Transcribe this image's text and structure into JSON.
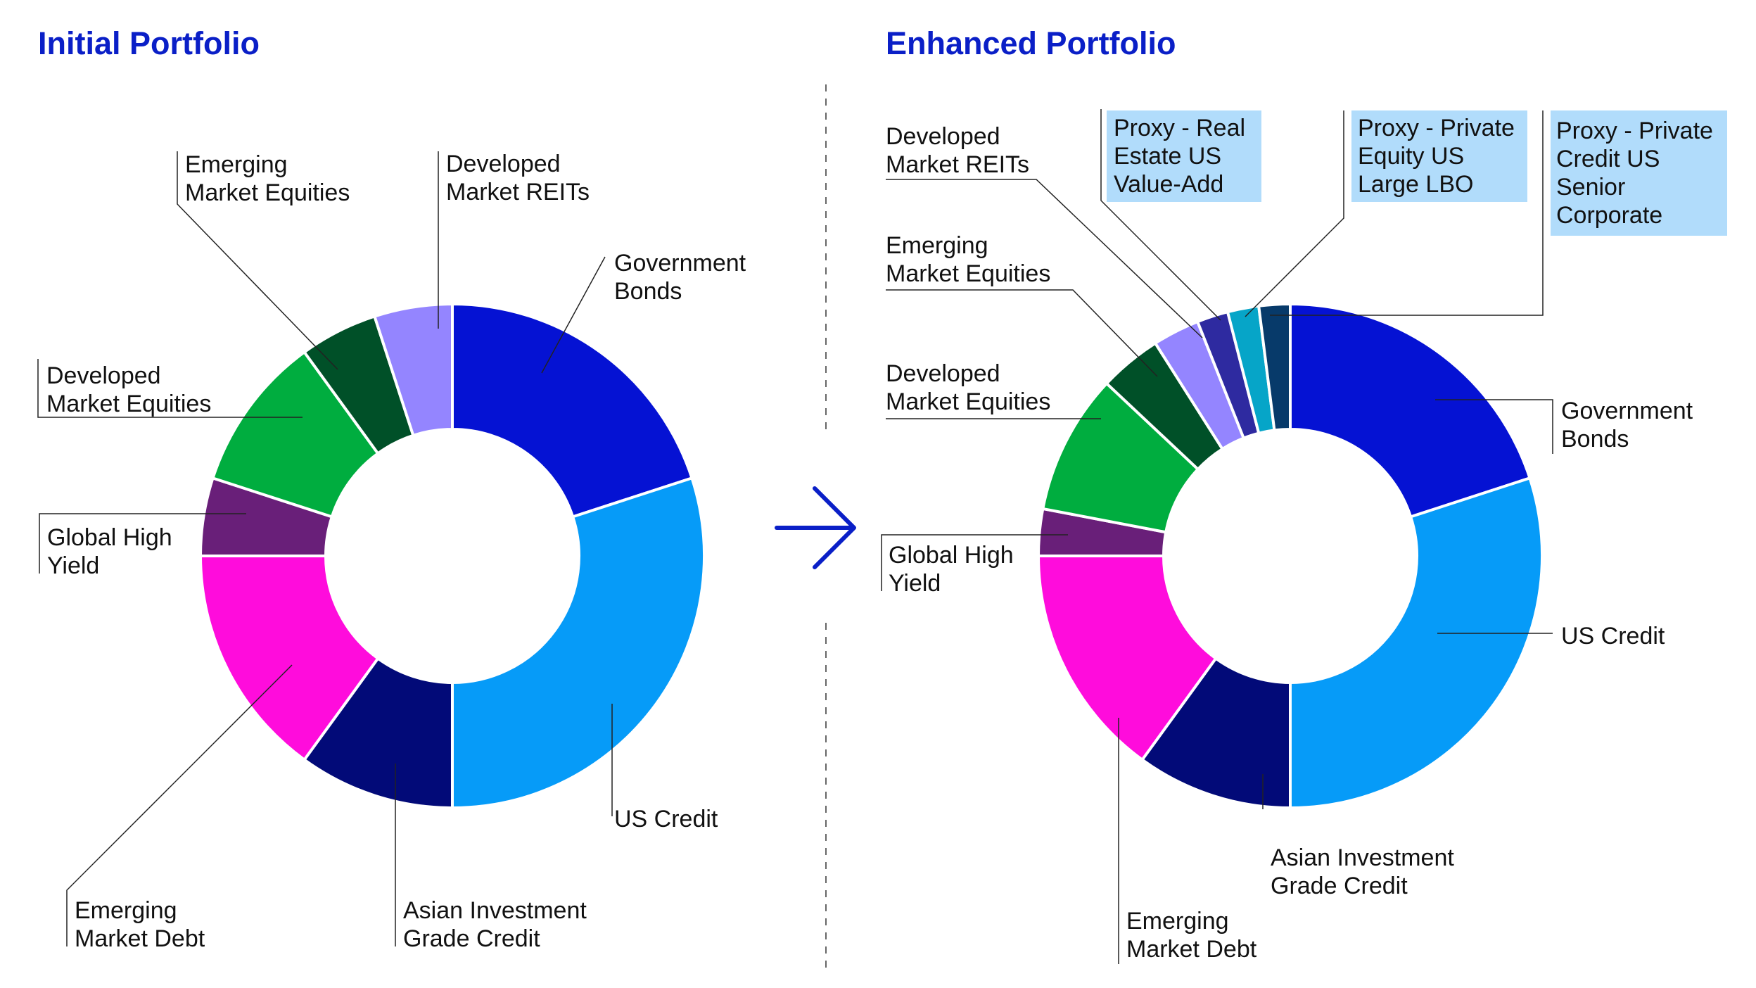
{
  "chart_data": [
    {
      "type": "pie",
      "title": "Initial Portfolio",
      "donut": true,
      "categories": [
        "Government Bonds",
        "US Credit",
        "Asian Investment Grade Credit",
        "Emerging Market Debt",
        "Global High Yield",
        "Developed Market Equities",
        "Emerging Market Equities",
        "Developed Market REITs"
      ],
      "values": [
        20,
        30,
        10,
        15,
        5,
        10,
        5,
        5
      ],
      "colors": [
        "#0512d3",
        "#069bf8",
        "#020a78",
        "#ff0cdc",
        "#691f79",
        "#00ad3f",
        "#005028",
        "#9485ff"
      ],
      "labels": [
        [
          "Government",
          "Bonds"
        ],
        [
          "US Credit"
        ],
        [
          "Asian Investment",
          "Grade Credit"
        ],
        [
          "Emerging",
          "Market Debt"
        ],
        [
          "Global High",
          "Yield"
        ],
        [
          "Developed",
          "Market Equities"
        ],
        [
          "Emerging",
          "Market Equities"
        ],
        [
          "Developed",
          "Market REITs"
        ]
      ]
    },
    {
      "type": "pie",
      "title": "Enhanced Portfolio",
      "donut": true,
      "categories": [
        "Government Bonds",
        "US Credit",
        "Asian Investment Grade Credit",
        "Emerging Market Debt",
        "Global High Yield",
        "Developed Market Equities",
        "Emerging Market Equities",
        "Developed Market REITs",
        "Proxy - Real Estate US Value-Add",
        "Proxy - Private Equity US Large LBO",
        "Proxy - Private Credit US Senior Corporate"
      ],
      "values": [
        20,
        30,
        10,
        15,
        3,
        9,
        4,
        3,
        2,
        2,
        2
      ],
      "colors": [
        "#0512d3",
        "#069bf8",
        "#020a78",
        "#ff0cdc",
        "#691f79",
        "#00ad3f",
        "#005028",
        "#9485ff",
        "#2e2aa0",
        "#06a5c8",
        "#073a6a"
      ],
      "labels": [
        [
          "Government",
          "Bonds"
        ],
        [
          "US Credit"
        ],
        [
          "Asian Investment",
          "Grade Credit"
        ],
        [
          "Emerging",
          "Market Debt"
        ],
        [
          "Global High",
          "Yield"
        ],
        [
          "Developed",
          "Market Equities"
        ],
        [
          "Emerging",
          "Market Equities"
        ],
        [
          "Developed",
          "Market REITs"
        ],
        [
          "Proxy - Real",
          "Estate US",
          "Value-Add"
        ],
        [
          "Proxy - Private",
          "Equity US",
          "Large LBO"
        ],
        [
          "Proxy - Private",
          "Credit US",
          "Senior",
          "Corporate"
        ]
      ],
      "highlight_color": "#b1dcfb"
    }
  ],
  "colors": {
    "title": "#0a1fc7",
    "arrow": "#0a1fc7",
    "text": "#111111",
    "leader": "#222222",
    "divider": "#666666"
  },
  "icons": {
    "arrow": "arrow-right-icon"
  }
}
